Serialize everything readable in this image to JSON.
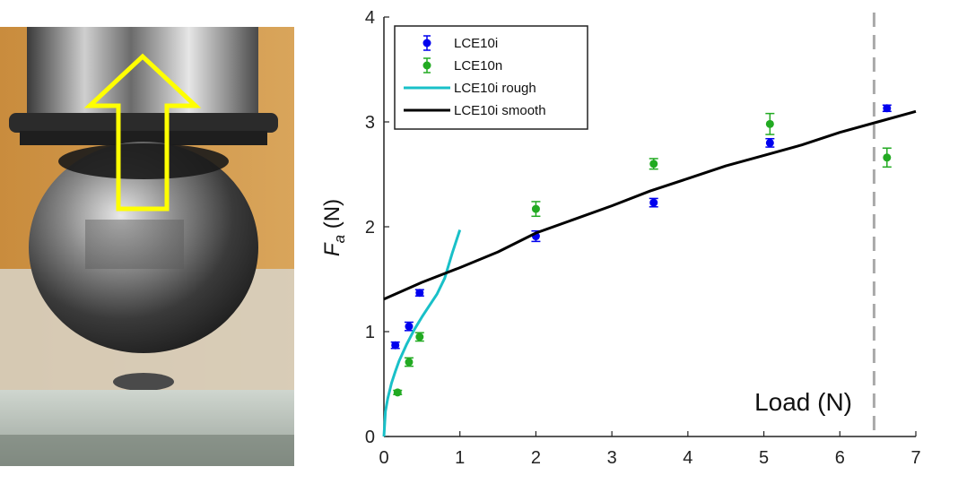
{
  "photo": {
    "arrow_color": "#ffff00"
  },
  "chart_data": {
    "type": "scatter",
    "ylabel_main": "F",
    "ylabel_sub": "a",
    "ylabel_unit": " (N)",
    "annotation": "Load (N)",
    "xlim": [
      0,
      7
    ],
    "ylim": [
      0,
      4
    ],
    "xticks": [
      "0",
      "1",
      "2",
      "3",
      "4",
      "5",
      "6",
      "7"
    ],
    "yticks": [
      "0",
      "1",
      "2",
      "3",
      "4"
    ],
    "vline_x": 6.45,
    "legend_position": "top-left",
    "series": [
      {
        "name": "LCE10i",
        "kind": "errorbar",
        "color": "#0000ee",
        "points": [
          {
            "x": 0.15,
            "y": 0.87,
            "err": 0.03
          },
          {
            "x": 0.33,
            "y": 1.05,
            "err": 0.04
          },
          {
            "x": 0.47,
            "y": 1.37,
            "err": 0.03
          },
          {
            "x": 2.0,
            "y": 1.91,
            "err": 0.05
          },
          {
            "x": 3.55,
            "y": 2.23,
            "err": 0.04
          },
          {
            "x": 5.08,
            "y": 2.8,
            "err": 0.04
          },
          {
            "x": 6.62,
            "y": 3.13,
            "err": 0.03
          }
        ]
      },
      {
        "name": "LCE10n",
        "kind": "errorbar",
        "color": "#22aa22",
        "points": [
          {
            "x": 0.18,
            "y": 0.42,
            "err": 0.02
          },
          {
            "x": 0.33,
            "y": 0.71,
            "err": 0.04
          },
          {
            "x": 0.47,
            "y": 0.95,
            "err": 0.04
          },
          {
            "x": 2.0,
            "y": 2.17,
            "err": 0.07
          },
          {
            "x": 3.55,
            "y": 2.6,
            "err": 0.05
          },
          {
            "x": 5.08,
            "y": 2.98,
            "err": 0.1
          },
          {
            "x": 6.62,
            "y": 2.66,
            "err": 0.09
          }
        ]
      },
      {
        "name": "LCE10i rough",
        "kind": "line",
        "color": "#19c0c8",
        "points": [
          {
            "x": 0,
            "y": 0
          },
          {
            "x": 0.02,
            "y": 0.24
          },
          {
            "x": 0.05,
            "y": 0.36
          },
          {
            "x": 0.1,
            "y": 0.51
          },
          {
            "x": 0.15,
            "y": 0.62
          },
          {
            "x": 0.2,
            "y": 0.72
          },
          {
            "x": 0.3,
            "y": 0.88
          },
          {
            "x": 0.4,
            "y": 1.02
          },
          {
            "x": 0.5,
            "y": 1.14
          },
          {
            "x": 0.6,
            "y": 1.25
          },
          {
            "x": 0.7,
            "y": 1.36
          },
          {
            "x": 0.8,
            "y": 1.51
          },
          {
            "x": 0.9,
            "y": 1.75
          },
          {
            "x": 1.0,
            "y": 1.97
          }
        ]
      },
      {
        "name": "LCE10i smooth",
        "kind": "line",
        "color": "#000000",
        "points": [
          {
            "x": 0,
            "y": 1.31
          },
          {
            "x": 0.25,
            "y": 1.39
          },
          {
            "x": 0.5,
            "y": 1.47
          },
          {
            "x": 1.0,
            "y": 1.61
          },
          {
            "x": 1.5,
            "y": 1.76
          },
          {
            "x": 2.0,
            "y": 1.94
          },
          {
            "x": 2.5,
            "y": 2.07
          },
          {
            "x": 3.0,
            "y": 2.2
          },
          {
            "x": 3.5,
            "y": 2.34
          },
          {
            "x": 4.0,
            "y": 2.46
          },
          {
            "x": 4.5,
            "y": 2.58
          },
          {
            "x": 5.0,
            "y": 2.68
          },
          {
            "x": 5.5,
            "y": 2.78
          },
          {
            "x": 6.0,
            "y": 2.9
          },
          {
            "x": 6.5,
            "y": 3.0
          },
          {
            "x": 7.0,
            "y": 3.1
          }
        ]
      }
    ]
  }
}
